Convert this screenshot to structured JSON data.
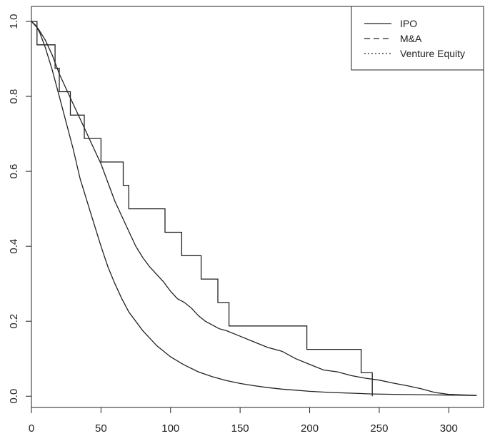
{
  "chart_data": {
    "type": "line",
    "title": "",
    "xlabel": "",
    "ylabel": "",
    "xlim": [
      0,
      325
    ],
    "ylim": [
      -0.03,
      1.04
    ],
    "x_ticks": [
      0,
      50,
      100,
      150,
      200,
      250,
      300
    ],
    "x_tick_labels": [
      "0",
      "50",
      "100",
      "150",
      "200",
      "250",
      "300"
    ],
    "y_ticks": [
      0.0,
      0.2,
      0.4,
      0.6,
      0.8,
      1.0
    ],
    "y_tick_labels": [
      "0.0",
      "0.2",
      "0.4",
      "0.6",
      "0.8",
      "1.0"
    ],
    "grid": false,
    "legend_position": "top-right",
    "legend": [
      {
        "label": "IPO",
        "dash": "solid"
      },
      {
        "label": "M&A",
        "dash": "dashed"
      },
      {
        "label": "Venture Equity",
        "dash": "dotted"
      }
    ],
    "series": [
      {
        "step": false,
        "x": [
          0,
          3,
          6,
          10,
          15,
          20,
          25,
          30,
          35,
          40,
          45,
          50,
          55,
          60,
          65,
          70,
          80,
          90,
          100,
          110,
          120,
          130,
          140,
          150,
          160,
          170,
          180,
          190,
          200,
          215,
          230,
          245,
          260,
          280,
          300,
          320
        ],
        "y": [
          1.0,
          0.99,
          0.97,
          0.93,
          0.87,
          0.8,
          0.73,
          0.66,
          0.58,
          0.52,
          0.46,
          0.4,
          0.345,
          0.3,
          0.26,
          0.225,
          0.175,
          0.135,
          0.105,
          0.083,
          0.065,
          0.052,
          0.042,
          0.034,
          0.028,
          0.023,
          0.019,
          0.016,
          0.013,
          0.01,
          0.008,
          0.006,
          0.005,
          0.004,
          0.003,
          0.002
        ]
      },
      {
        "step": false,
        "x": [
          0,
          5,
          10,
          15,
          20,
          25,
          30,
          35,
          40,
          45,
          50,
          55,
          60,
          65,
          70,
          75,
          80,
          85,
          90,
          95,
          100,
          105,
          110,
          115,
          120,
          125,
          130,
          135,
          140,
          150,
          160,
          170,
          180,
          190,
          200,
          210,
          220,
          230,
          240,
          250,
          260,
          270,
          280,
          290,
          300,
          320
        ],
        "y": [
          1.0,
          0.98,
          0.95,
          0.91,
          0.86,
          0.82,
          0.78,
          0.74,
          0.7,
          0.66,
          0.62,
          0.57,
          0.52,
          0.48,
          0.44,
          0.4,
          0.37,
          0.345,
          0.325,
          0.305,
          0.28,
          0.26,
          0.25,
          0.235,
          0.215,
          0.2,
          0.19,
          0.18,
          0.175,
          0.16,
          0.145,
          0.13,
          0.12,
          0.1,
          0.085,
          0.07,
          0.065,
          0.055,
          0.048,
          0.043,
          0.035,
          0.028,
          0.02,
          0.01,
          0.005,
          0.002
        ]
      },
      {
        "step": true,
        "x": [
          0,
          4,
          17,
          20,
          28,
          38,
          50,
          54,
          66,
          68,
          70,
          96,
          100,
          108,
          122,
          130,
          134,
          142,
          198,
          237,
          245
        ],
        "y": [
          1.0,
          0.9375,
          0.875,
          0.8125,
          0.75,
          0.6875,
          0.625,
          0.625,
          0.5625,
          0.5625,
          0.5,
          0.4375,
          0.4375,
          0.375,
          0.3125,
          0.3125,
          0.25,
          0.1875,
          0.125,
          0.0625,
          0.0
        ]
      }
    ]
  }
}
